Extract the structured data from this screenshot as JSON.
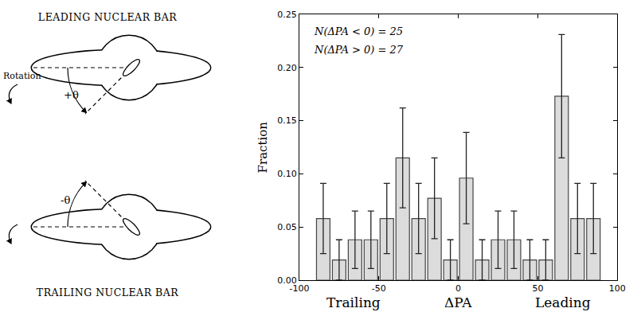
{
  "diagram": {
    "panels": [
      {
        "title": "LEADING NUCLEAR BAR",
        "rotation_label": "Rotation",
        "angle_label": "+θ"
      },
      {
        "title": "TRAILING NUCLEAR BAR",
        "angle_label": "-θ"
      }
    ]
  },
  "chart_data": {
    "type": "histogram",
    "bins": [
      -90,
      -80,
      -70,
      -60,
      -50,
      -40,
      -30,
      -20,
      -10,
      0,
      10,
      20,
      30,
      40,
      50,
      60,
      70,
      80,
      90
    ],
    "values": [
      0.058,
      0.019,
      0.038,
      0.038,
      0.058,
      0.115,
      0.058,
      0.077,
      0.019,
      0.096,
      0.019,
      0.038,
      0.038,
      0.019,
      0.019,
      0.173,
      0.058,
      0.058
    ],
    "errors": [
      0.033,
      0.019,
      0.027,
      0.027,
      0.033,
      0.047,
      0.033,
      0.038,
      0.019,
      0.043,
      0.019,
      0.027,
      0.027,
      0.019,
      0.019,
      0.058,
      0.033,
      0.033
    ],
    "color": "#dcdcdc",
    "xlabel": [
      "Trailing",
      "ΔPA",
      "Leading"
    ],
    "ylabel": "Fraction",
    "annotations": [
      "N(ΔPA < 0) = 25",
      "N(ΔPA > 0) = 27"
    ],
    "xlim": [
      -100,
      100
    ],
    "xticks": [
      -100,
      -50,
      0,
      50,
      100
    ],
    "ylim": [
      0,
      0.25
    ],
    "yticks": [
      {
        "value": 0,
        "label": "0.00"
      },
      {
        "value": 0.05,
        "label": "0.05"
      },
      {
        "value": 0.1,
        "label": "0.10"
      },
      {
        "value": 0.15,
        "label": "0.15"
      },
      {
        "value": 0.2,
        "label": "0.20"
      },
      {
        "value": 0.25,
        "label": "0.25"
      }
    ],
    "grid": false
  }
}
